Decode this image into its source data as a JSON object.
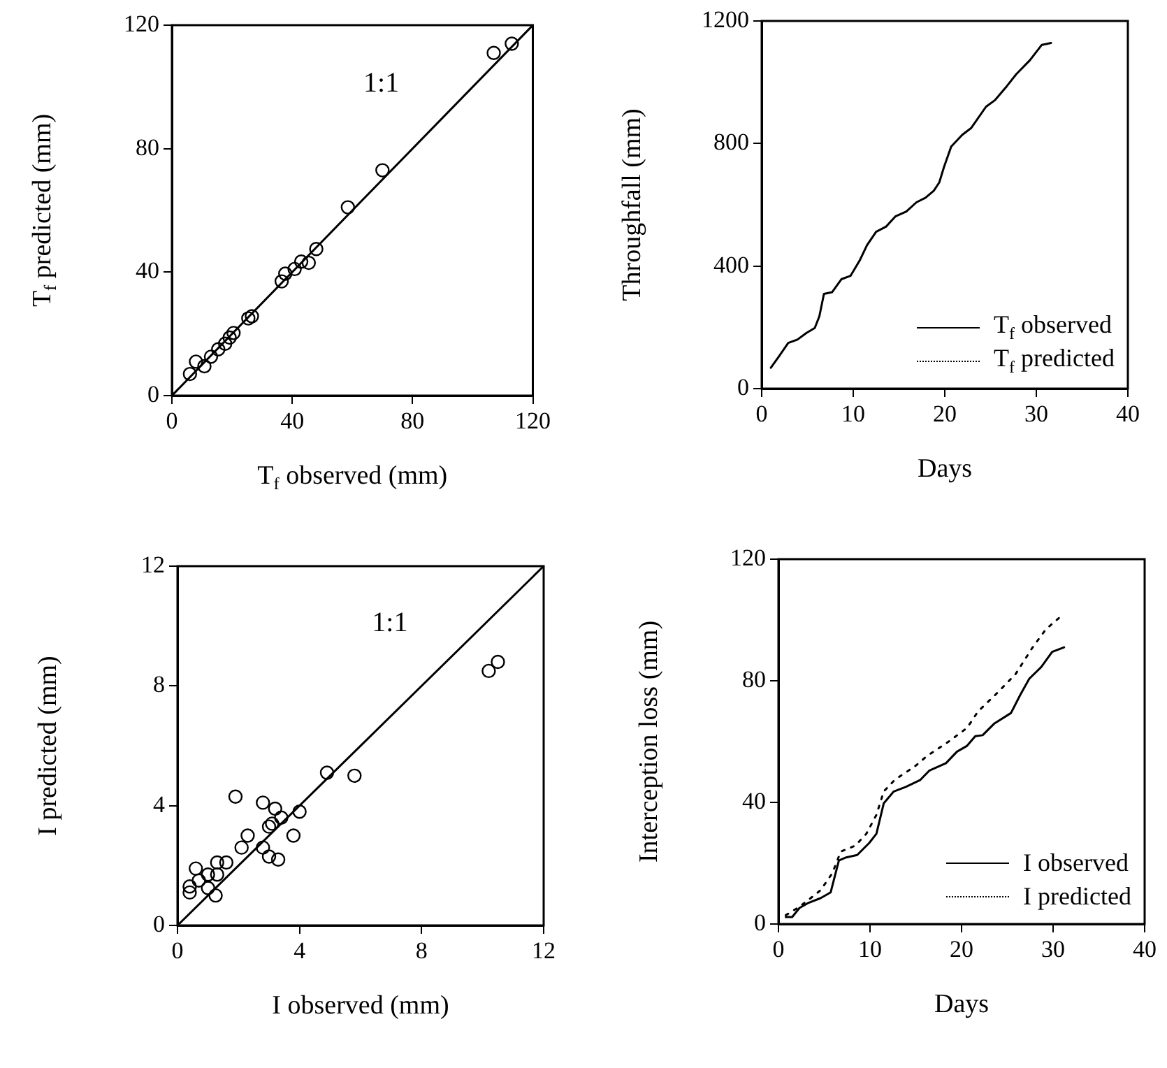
{
  "chart_data": [
    {
      "type": "scatter",
      "xlabel": "T$_{f}$ observed (mm)",
      "ylabel": "T$_{f}$ predicted (mm)",
      "xlim": [
        0,
        120
      ],
      "ylim": [
        0,
        120
      ],
      "xticks": [
        0,
        40,
        80,
        120
      ],
      "yticks": [
        0,
        40,
        80,
        120
      ],
      "marker": "circle",
      "grid": false,
      "annotations": [
        "1:1"
      ],
      "series": [
        {
          "color": "#000000",
          "x": [
            113,
            107,
            70,
            58.5,
            48,
            45.5,
            43,
            40.8,
            37.7,
            36.5,
            26.6,
            25.4,
            20.5,
            19.2,
            17.7,
            15.4,
            13,
            10.8,
            8,
            6
          ],
          "values": [
            114,
            111,
            73,
            61,
            47.5,
            43,
            43.4,
            41,
            39.5,
            37,
            25.7,
            25,
            20.3,
            18.8,
            16.8,
            15,
            12.6,
            9.5,
            11,
            7
          ]
        },
        {
          "type": "line",
          "marker": "none",
          "color": "#000000",
          "x": [
            0,
            120
          ],
          "values": [
            0,
            120
          ]
        }
      ]
    },
    {
      "type": "line",
      "xlabel": "Days",
      "ylabel": "Throughfall (mm)",
      "xlim": [
        0,
        40
      ],
      "ylim": [
        0,
        1200
      ],
      "xticks": [
        0,
        10,
        20,
        30,
        40
      ],
      "yticks": [
        0,
        400,
        800,
        1200
      ],
      "grid": false,
      "legend": "bottom right",
      "series": [
        {
          "name": "T$_{f}$ observed",
          "color": "#000000",
          "line_style": "solid",
          "x": [
            1,
            1.9,
            2.9,
            3.9,
            4.9,
            5.8,
            6.3,
            6.8,
            7.7,
            8.7,
            9.7,
            10.7,
            11.5,
            12.5,
            13.6,
            14.6,
            15.8,
            16.9,
            17.9,
            18.8,
            19.4,
            19.9,
            20.7,
            21.9,
            22.9,
            24.5,
            25.5,
            26.8,
            27.8,
            29.3,
            30.6,
            31.6
          ],
          "values": [
            68,
            106,
            149,
            160,
            182,
            198,
            236,
            309,
            315,
            357,
            368,
            418,
            468,
            512,
            529,
            562,
            578,
            608,
            623,
            646,
            673,
            722,
            790,
            828,
            851,
            920,
            942,
            988,
            1026,
            1072,
            1122,
            1128
          ]
        },
        {
          "name": "T$_{f}$ predicted",
          "color": "#000000",
          "line_style": "dotted"
        }
      ]
    },
    {
      "type": "scatter",
      "xlabel": "I observed (mm)",
      "ylabel": "I predicted (mm)",
      "xlim": [
        0,
        12
      ],
      "ylim": [
        0,
        12
      ],
      "xticks": [
        0,
        4,
        8,
        12
      ],
      "yticks": [
        0,
        4,
        8,
        12
      ],
      "marker": "circle",
      "grid": false,
      "annotations": [
        "1:1"
      ],
      "series": [
        {
          "color": "#000000",
          "x": [
            10.5,
            10.2,
            5.8,
            4.9,
            4.0,
            3.8,
            3.4,
            3.2,
            3.1,
            3.0,
            2.8,
            2.8,
            3.0,
            3.3,
            2.3,
            2.1,
            1.9,
            1.6,
            1.3,
            1.3,
            1.25,
            1.0,
            1.0,
            0.7,
            0.6,
            0.4,
            0.4
          ],
          "values": [
            8.8,
            8.5,
            5.0,
            5.1,
            3.8,
            3.0,
            3.6,
            3.9,
            3.4,
            3.3,
            4.1,
            2.6,
            2.3,
            2.2,
            3.0,
            2.6,
            4.3,
            2.1,
            2.1,
            1.7,
            1.0,
            1.25,
            1.7,
            1.5,
            1.9,
            1.3,
            1.1
          ]
        },
        {
          "type": "line",
          "marker": "none",
          "color": "#000000",
          "x": [
            0,
            12
          ],
          "values": [
            0,
            12
          ]
        }
      ]
    },
    {
      "type": "line",
      "xlabel": "Days",
      "ylabel": "Interception loss (mm)",
      "xlim": [
        0,
        40
      ],
      "ylim": [
        0,
        120
      ],
      "xticks": [
        0,
        10,
        20,
        30,
        40
      ],
      "yticks": [
        0,
        40,
        80,
        120
      ],
      "grid": false,
      "legend": "bottom right",
      "series": [
        {
          "name": "I observed",
          "color": "#000000",
          "line_style": "solid",
          "x": [
            0.8,
            1.5,
            2.3,
            3.3,
            4.6,
            5.7,
            6.6,
            7.4,
            8.6,
            9.9,
            10.7,
            11.5,
            12.6,
            13.9,
            15.5,
            16.5,
            18.3,
            19.5,
            20.6,
            21.5,
            22.3,
            23.6,
            25.4,
            26.4,
            27.4,
            28.7,
            29.9,
            31.2
          ],
          "values": [
            2.3,
            2.3,
            5.3,
            7.0,
            8.5,
            10.4,
            20.9,
            21.9,
            22.7,
            26.6,
            29.7,
            39.7,
            43.6,
            45.1,
            47.4,
            50.5,
            52.9,
            56.7,
            58.6,
            61.8,
            62.1,
            66.0,
            69.4,
            75.3,
            80.7,
            84.5,
            89.5,
            91.0
          ]
        },
        {
          "name": "I predicted",
          "color": "#000000",
          "line_style": "dotted",
          "x": [
            0.8,
            2.3,
            3.3,
            4.6,
            5.9,
            6.8,
            8.4,
            9.6,
            10.7,
            11.5,
            12.7,
            15.0,
            16.2,
            18.5,
            20.6,
            21.8,
            23.9,
            25.9,
            27.7,
            29.2,
            30.7
          ],
          "values": [
            2.9,
            5.7,
            8.0,
            11.1,
            16.8,
            23.8,
            25.8,
            29.7,
            35.9,
            43.6,
            47.4,
            52.1,
            55.2,
            59.8,
            64.5,
            69.9,
            76.0,
            82.2,
            90.7,
            96.9,
            100.8
          ]
        }
      ]
    }
  ]
}
